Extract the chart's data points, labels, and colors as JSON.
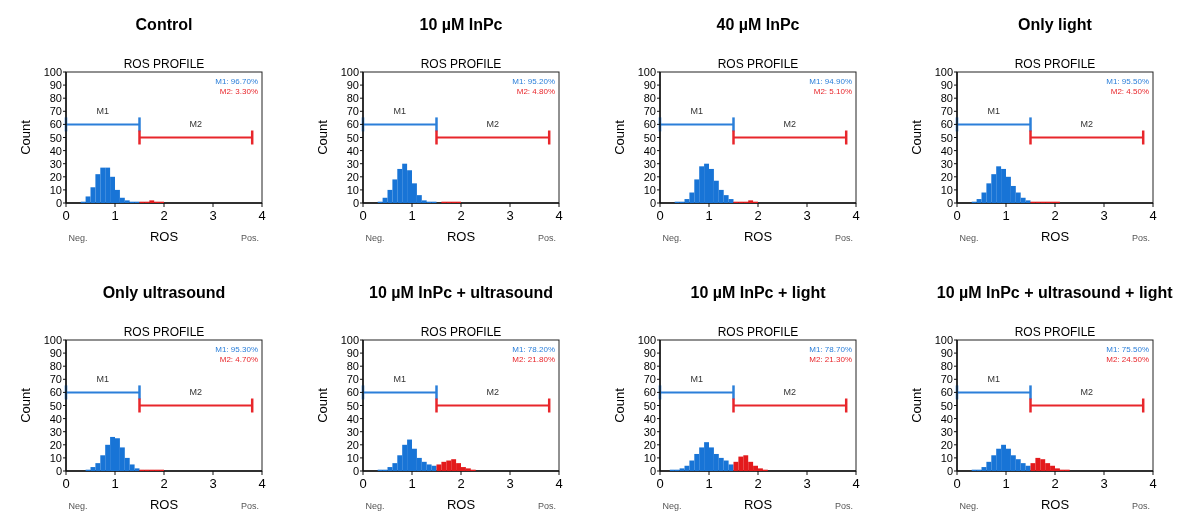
{
  "chart_data": [
    {
      "type": "histogram",
      "title": "Control",
      "subtitle": "ROS PROFILE",
      "xlabel": "ROS",
      "ylabel": "Count",
      "bins": [
        0.2,
        0.3,
        0.4,
        0.5,
        0.6,
        0.7,
        0.8,
        0.9,
        1.0,
        1.1,
        1.2,
        1.3,
        1.4,
        1.5,
        1.6,
        1.7,
        1.8,
        1.9,
        2.0,
        2.1,
        2.2,
        2.3,
        2.4
      ],
      "values": [
        0,
        1,
        5,
        12,
        22,
        27,
        27,
        20,
        10,
        4,
        2,
        1,
        1,
        1,
        1,
        2,
        1,
        1,
        0,
        0,
        0,
        0
      ],
      "colors": [
        "#1874d6",
        "#1874d6",
        "#1874d6",
        "#1874d6",
        "#1874d6",
        "#1874d6",
        "#1874d6",
        "#1874d6",
        "#1874d6",
        "#1874d6",
        "#1874d6",
        "#1874d6",
        "#1874d6",
        "#e31a1c",
        "#e31a1c",
        "#e31a1c",
        "#e31a1c",
        "#e31a1c",
        "#e31a1c",
        "#e31a1c",
        "#e31a1c",
        "#e31a1c"
      ],
      "series": [
        {
          "type": "line",
          "name": "M1: 96.70%",
          "color": "#2b7fd9",
          "x": [
            0,
            1.5
          ],
          "values": [
            60,
            60
          ]
        },
        {
          "type": "line",
          "name": "M2: 3.30%",
          "color": "#e8262b",
          "x": [
            1.5,
            3.8
          ],
          "values": [
            50,
            50
          ]
        }
      ],
      "annotations": [
        "M1",
        "M2",
        "Neg.",
        "Pos."
      ],
      "legend": "top right",
      "xlim": [
        0,
        4
      ],
      "xticks": [
        0,
        1,
        2,
        3,
        4
      ],
      "ylim": [
        0,
        100
      ],
      "yticks": [
        0,
        10,
        20,
        30,
        40,
        50,
        60,
        70,
        80,
        90,
        100
      ]
    },
    {
      "type": "histogram",
      "title": "10 µM InPc",
      "subtitle": "ROS PROFILE",
      "xlabel": "ROS",
      "ylabel": "Count",
      "bins": [
        0.2,
        0.3,
        0.4,
        0.5,
        0.6,
        0.7,
        0.8,
        0.9,
        1.0,
        1.1,
        1.2,
        1.3,
        1.4,
        1.5,
        1.6,
        1.7,
        1.8,
        1.9,
        2.0,
        2.1,
        2.2,
        2.3,
        2.4
      ],
      "values": [
        0,
        1,
        4,
        10,
        18,
        26,
        30,
        25,
        15,
        6,
        2,
        1,
        1,
        0,
        1,
        1,
        1,
        1,
        0,
        0,
        0,
        0
      ],
      "colors": [
        "#1874d6",
        "#1874d6",
        "#1874d6",
        "#1874d6",
        "#1874d6",
        "#1874d6",
        "#1874d6",
        "#1874d6",
        "#1874d6",
        "#1874d6",
        "#1874d6",
        "#1874d6",
        "#1874d6",
        "#e31a1c",
        "#e31a1c",
        "#e31a1c",
        "#e31a1c",
        "#e31a1c",
        "#e31a1c",
        "#e31a1c",
        "#e31a1c",
        "#e31a1c"
      ],
      "series": [
        {
          "type": "line",
          "name": "M1: 95.20%",
          "color": "#2b7fd9",
          "x": [
            0,
            1.5
          ],
          "values": [
            60,
            60
          ]
        },
        {
          "type": "line",
          "name": "M2: 4.80%",
          "color": "#e8262b",
          "x": [
            1.5,
            3.8
          ],
          "values": [
            50,
            50
          ]
        }
      ],
      "annotations": [
        "M1",
        "M2",
        "Neg.",
        "Pos."
      ],
      "legend": "top right",
      "xlim": [
        0,
        4
      ],
      "xticks": [
        0,
        1,
        2,
        3,
        4
      ],
      "ylim": [
        0,
        100
      ],
      "yticks": [
        0,
        10,
        20,
        30,
        40,
        50,
        60,
        70,
        80,
        90,
        100
      ]
    },
    {
      "type": "histogram",
      "title": "40 µM InPc",
      "subtitle": "ROS PROFILE",
      "xlabel": "ROS",
      "ylabel": "Count",
      "bins": [
        0.2,
        0.3,
        0.4,
        0.5,
        0.6,
        0.7,
        0.8,
        0.9,
        1.0,
        1.1,
        1.2,
        1.3,
        1.4,
        1.5,
        1.6,
        1.7,
        1.8,
        1.9,
        2.0,
        2.1,
        2.2,
        2.3,
        2.4
      ],
      "values": [
        0,
        1,
        1,
        3,
        8,
        18,
        28,
        30,
        26,
        17,
        10,
        6,
        3,
        1,
        1,
        1,
        2,
        1,
        0,
        0,
        0,
        0
      ],
      "colors": [
        "#1874d6",
        "#1874d6",
        "#1874d6",
        "#1874d6",
        "#1874d6",
        "#1874d6",
        "#1874d6",
        "#1874d6",
        "#1874d6",
        "#1874d6",
        "#1874d6",
        "#1874d6",
        "#1874d6",
        "#e31a1c",
        "#e31a1c",
        "#e31a1c",
        "#e31a1c",
        "#e31a1c",
        "#e31a1c",
        "#e31a1c",
        "#e31a1c",
        "#e31a1c"
      ],
      "series": [
        {
          "type": "line",
          "name": "M1: 94.90%",
          "color": "#2b7fd9",
          "x": [
            0,
            1.5
          ],
          "values": [
            60,
            60
          ]
        },
        {
          "type": "line",
          "name": "M2: 5.10%",
          "color": "#e8262b",
          "x": [
            1.5,
            3.8
          ],
          "values": [
            50,
            50
          ]
        }
      ],
      "annotations": [
        "M1",
        "M2",
        "Neg.",
        "Pos."
      ],
      "legend": "top right",
      "xlim": [
        0,
        4
      ],
      "xticks": [
        0,
        1,
        2,
        3,
        4
      ],
      "ylim": [
        0,
        100
      ],
      "yticks": [
        0,
        10,
        20,
        30,
        40,
        50,
        60,
        70,
        80,
        90,
        100
      ]
    },
    {
      "type": "histogram",
      "title": "Only light",
      "subtitle": "ROS PROFILE",
      "xlabel": "ROS",
      "ylabel": "Count",
      "bins": [
        0.2,
        0.3,
        0.4,
        0.5,
        0.6,
        0.7,
        0.8,
        0.9,
        1.0,
        1.1,
        1.2,
        1.3,
        1.4,
        1.5,
        1.6,
        1.7,
        1.8,
        1.9,
        2.0,
        2.1,
        2.2,
        2.3,
        2.4
      ],
      "values": [
        0,
        1,
        3,
        8,
        15,
        22,
        28,
        26,
        20,
        13,
        8,
        4,
        2,
        1,
        1,
        1,
        1,
        1,
        1,
        0,
        0,
        0
      ],
      "colors": [
        "#1874d6",
        "#1874d6",
        "#1874d6",
        "#1874d6",
        "#1874d6",
        "#1874d6",
        "#1874d6",
        "#1874d6",
        "#1874d6",
        "#1874d6",
        "#1874d6",
        "#1874d6",
        "#1874d6",
        "#e31a1c",
        "#e31a1c",
        "#e31a1c",
        "#e31a1c",
        "#e31a1c",
        "#e31a1c",
        "#e31a1c",
        "#e31a1c",
        "#e31a1c"
      ],
      "series": [
        {
          "type": "line",
          "name": "M1: 95.50%",
          "color": "#2b7fd9",
          "x": [
            0,
            1.5
          ],
          "values": [
            60,
            60
          ]
        },
        {
          "type": "line",
          "name": "M2: 4.50%",
          "color": "#e8262b",
          "x": [
            1.5,
            3.8
          ],
          "values": [
            50,
            50
          ]
        }
      ],
      "annotations": [
        "M1",
        "M2",
        "Neg.",
        "Pos."
      ],
      "legend": "top right",
      "xlim": [
        0,
        4
      ],
      "xticks": [
        0,
        1,
        2,
        3,
        4
      ],
      "ylim": [
        0,
        100
      ],
      "yticks": [
        0,
        10,
        20,
        30,
        40,
        50,
        60,
        70,
        80,
        90,
        100
      ]
    },
    {
      "type": "histogram",
      "title": "Only ultrasound",
      "subtitle": "ROS PROFILE",
      "xlabel": "ROS",
      "ylabel": "Count",
      "bins": [
        0.2,
        0.3,
        0.4,
        0.5,
        0.6,
        0.7,
        0.8,
        0.9,
        1.0,
        1.1,
        1.2,
        1.3,
        1.4,
        1.5,
        1.6,
        1.7,
        1.8,
        1.9,
        2.0,
        2.1,
        2.2,
        2.3,
        2.4
      ],
      "values": [
        0,
        0,
        1,
        3,
        6,
        12,
        20,
        26,
        25,
        18,
        10,
        5,
        2,
        1,
        1,
        1,
        1,
        1,
        0,
        0,
        0,
        0
      ],
      "colors": [
        "#1874d6",
        "#1874d6",
        "#1874d6",
        "#1874d6",
        "#1874d6",
        "#1874d6",
        "#1874d6",
        "#1874d6",
        "#1874d6",
        "#1874d6",
        "#1874d6",
        "#1874d6",
        "#1874d6",
        "#e31a1c",
        "#e31a1c",
        "#e31a1c",
        "#e31a1c",
        "#e31a1c",
        "#e31a1c",
        "#e31a1c",
        "#e31a1c",
        "#e31a1c"
      ],
      "series": [
        {
          "type": "line",
          "name": "M1: 95.30%",
          "color": "#2b7fd9",
          "x": [
            0,
            1.5
          ],
          "values": [
            60,
            60
          ]
        },
        {
          "type": "line",
          "name": "M2: 4.70%",
          "color": "#e8262b",
          "x": [
            1.5,
            3.8
          ],
          "values": [
            50,
            50
          ]
        }
      ],
      "annotations": [
        "M1",
        "M2",
        "Neg.",
        "Pos."
      ],
      "legend": "top right",
      "xlim": [
        0,
        4
      ],
      "xticks": [
        0,
        1,
        2,
        3,
        4
      ],
      "ylim": [
        0,
        100
      ],
      "yticks": [
        0,
        10,
        20,
        30,
        40,
        50,
        60,
        70,
        80,
        90,
        100
      ]
    },
    {
      "type": "histogram",
      "title": "10 µM InPc + ultrasound",
      "subtitle": "ROS PROFILE",
      "xlabel": "ROS",
      "ylabel": "Count",
      "bins": [
        0.2,
        0.3,
        0.4,
        0.5,
        0.6,
        0.7,
        0.8,
        0.9,
        1.0,
        1.1,
        1.2,
        1.3,
        1.4,
        1.5,
        1.6,
        1.7,
        1.8,
        1.9,
        2.0,
        2.1,
        2.2,
        2.3,
        2.4
      ],
      "values": [
        0,
        1,
        1,
        3,
        6,
        12,
        20,
        24,
        17,
        10,
        7,
        5,
        4,
        5,
        7,
        8,
        9,
        6,
        3,
        2,
        1,
        0
      ],
      "colors": [
        "#1874d6",
        "#1874d6",
        "#1874d6",
        "#1874d6",
        "#1874d6",
        "#1874d6",
        "#1874d6",
        "#1874d6",
        "#1874d6",
        "#1874d6",
        "#1874d6",
        "#1874d6",
        "#1874d6",
        "#e31a1c",
        "#e31a1c",
        "#e31a1c",
        "#e31a1c",
        "#e31a1c",
        "#e31a1c",
        "#e31a1c",
        "#e31a1c",
        "#e31a1c"
      ],
      "series": [
        {
          "type": "line",
          "name": "M1: 78.20%",
          "color": "#2b7fd9",
          "x": [
            0,
            1.5
          ],
          "values": [
            60,
            60
          ]
        },
        {
          "type": "line",
          "name": "M2: 21.80%",
          "color": "#e8262b",
          "x": [
            1.5,
            3.8
          ],
          "values": [
            50,
            50
          ]
        }
      ],
      "annotations": [
        "M1",
        "M2",
        "Neg.",
        "Pos."
      ],
      "legend": "top right",
      "xlim": [
        0,
        4
      ],
      "xticks": [
        0,
        1,
        2,
        3,
        4
      ],
      "ylim": [
        0,
        100
      ],
      "yticks": [
        0,
        10,
        20,
        30,
        40,
        50,
        60,
        70,
        80,
        90,
        100
      ]
    },
    {
      "type": "histogram",
      "title": "10 µM InPc + light",
      "subtitle": "ROS PROFILE",
      "xlabel": "ROS",
      "ylabel": "Count",
      "bins": [
        0.2,
        0.3,
        0.4,
        0.5,
        0.6,
        0.7,
        0.8,
        0.9,
        1.0,
        1.1,
        1.2,
        1.3,
        1.4,
        1.5,
        1.6,
        1.7,
        1.8,
        1.9,
        2.0,
        2.1,
        2.2,
        2.3,
        2.4
      ],
      "values": [
        1,
        1,
        2,
        4,
        8,
        13,
        18,
        22,
        18,
        13,
        10,
        8,
        5,
        7,
        11,
        12,
        7,
        4,
        2,
        1,
        0,
        0
      ],
      "colors": [
        "#1874d6",
        "#1874d6",
        "#1874d6",
        "#1874d6",
        "#1874d6",
        "#1874d6",
        "#1874d6",
        "#1874d6",
        "#1874d6",
        "#1874d6",
        "#1874d6",
        "#1874d6",
        "#1874d6",
        "#e31a1c",
        "#e31a1c",
        "#e31a1c",
        "#e31a1c",
        "#e31a1c",
        "#e31a1c",
        "#e31a1c",
        "#e31a1c",
        "#e31a1c"
      ],
      "series": [
        {
          "type": "line",
          "name": "M1: 78.70%",
          "color": "#2b7fd9",
          "x": [
            0,
            1.5
          ],
          "values": [
            60,
            60
          ]
        },
        {
          "type": "line",
          "name": "M2: 21.30%",
          "color": "#e8262b",
          "x": [
            1.5,
            3.8
          ],
          "values": [
            50,
            50
          ]
        }
      ],
      "annotations": [
        "M1",
        "M2",
        "Neg.",
        "Pos."
      ],
      "legend": "top right",
      "xlim": [
        0,
        4
      ],
      "xticks": [
        0,
        1,
        2,
        3,
        4
      ],
      "ylim": [
        0,
        100
      ],
      "yticks": [
        0,
        10,
        20,
        30,
        40,
        50,
        60,
        70,
        80,
        90,
        100
      ]
    },
    {
      "type": "histogram",
      "title": "10 µM InPc + ultrasound + light",
      "subtitle": "ROS PROFILE",
      "xlabel": "ROS",
      "ylabel": "Count",
      "bins": [
        0.2,
        0.3,
        0.4,
        0.5,
        0.6,
        0.7,
        0.8,
        0.9,
        1.0,
        1.1,
        1.2,
        1.3,
        1.4,
        1.5,
        1.6,
        1.7,
        1.8,
        1.9,
        2.0,
        2.1,
        2.2,
        2.3,
        2.4
      ],
      "values": [
        0,
        1,
        1,
        3,
        7,
        12,
        17,
        20,
        17,
        12,
        9,
        6,
        4,
        6,
        10,
        9,
        6,
        4,
        2,
        1,
        1,
        0
      ],
      "colors": [
        "#1874d6",
        "#1874d6",
        "#1874d6",
        "#1874d6",
        "#1874d6",
        "#1874d6",
        "#1874d6",
        "#1874d6",
        "#1874d6",
        "#1874d6",
        "#1874d6",
        "#1874d6",
        "#1874d6",
        "#e31a1c",
        "#e31a1c",
        "#e31a1c",
        "#e31a1c",
        "#e31a1c",
        "#e31a1c",
        "#e31a1c",
        "#e31a1c",
        "#e31a1c"
      ],
      "series": [
        {
          "type": "line",
          "name": "M1: 75.50%",
          "color": "#2b7fd9",
          "x": [
            0,
            1.5
          ],
          "values": [
            60,
            60
          ]
        },
        {
          "type": "line",
          "name": "M2: 24.50%",
          "color": "#e8262b",
          "x": [
            1.5,
            3.8
          ],
          "values": [
            50,
            50
          ]
        }
      ],
      "annotations": [
        "M1",
        "M2",
        "Neg.",
        "Pos."
      ],
      "legend": "top right",
      "xlim": [
        0,
        4
      ],
      "xticks": [
        0,
        1,
        2,
        3,
        4
      ],
      "ylim": [
        0,
        100
      ],
      "yticks": [
        0,
        10,
        20,
        30,
        40,
        50,
        60,
        70,
        80,
        90,
        100
      ]
    }
  ]
}
